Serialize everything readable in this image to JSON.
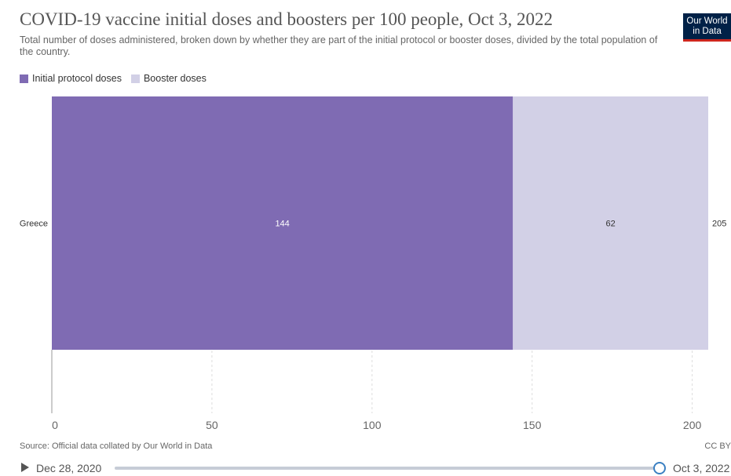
{
  "title": "COVID-19 vaccine initial doses and boosters per 100 people, Oct 3, 2022",
  "subtitle": "Total number of doses administered, broken down by whether they are part of the initial protocol or booster doses, divided by the total population of the country.",
  "logo": {
    "line1": "Our World",
    "line2": "in Data"
  },
  "source": "Source: Official data collated by Our World in Data",
  "license": "CC BY",
  "timeline": {
    "start": "Dec 28, 2020",
    "end": "Oct 3, 2022"
  },
  "colors": {
    "initial": "#7f6bb3",
    "booster": "#d2d0e6"
  },
  "chart_data": {
    "type": "bar",
    "orientation": "horizontal",
    "stacked": true,
    "categories": [
      "Greece"
    ],
    "series": [
      {
        "name": "Initial protocol doses",
        "values": [
          144
        ]
      },
      {
        "name": "Booster doses",
        "values": [
          62
        ]
      }
    ],
    "totals": [
      "205"
    ],
    "xlim": [
      0,
      205
    ],
    "xticks": [
      0,
      50,
      100,
      150,
      200
    ],
    "grid": "vertical-dashed",
    "legend": "top-left"
  }
}
